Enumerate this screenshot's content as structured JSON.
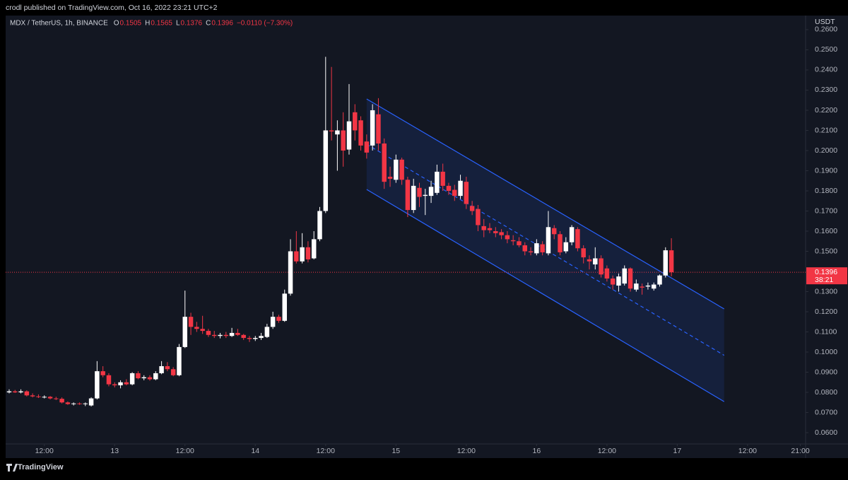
{
  "header": {
    "byline": "crodl published on TradingView.com, Oct 16, 2022 23:21 UTC+2",
    "brand": "TradingView"
  },
  "chart_data": {
    "type": "candlestick",
    "symbol": "MDX / TetherUS, 1h, BINANCE",
    "legend": [
      {
        "key": "O",
        "value": "0.1505"
      },
      {
        "key": "H",
        "value": "0.1565"
      },
      {
        "key": "L",
        "value": "0.1376"
      },
      {
        "key": "C",
        "value": "0.1396"
      }
    ],
    "change": "−0.0110 (−7.30%)",
    "currency": "USDT",
    "up_color": "#ffffff",
    "down_color": "#f23645",
    "last_price": {
      "value": 0.1396,
      "label": "0.1396"
    },
    "countdown": "38:21",
    "xlim": [
      5.4,
      141.9
    ],
    "xticks": [
      {
        "value": 12,
        "label": "12:00"
      },
      {
        "value": 24,
        "label": "13"
      },
      {
        "value": 36,
        "label": "12:00"
      },
      {
        "value": 48,
        "label": "14"
      },
      {
        "value": 60,
        "label": "12:00"
      },
      {
        "value": 72,
        "label": "15"
      },
      {
        "value": 84,
        "label": "12:00"
      },
      {
        "value": 96,
        "label": "16"
      },
      {
        "value": 108,
        "label": "12:00"
      },
      {
        "value": 120,
        "label": "17"
      },
      {
        "value": 132,
        "label": "12:00"
      },
      {
        "value": 141,
        "label": "21:00"
      }
    ],
    "ylim": [
      0.0544,
      0.267
    ],
    "yticks": [
      {
        "value": 0.26,
        "label": "0.2600"
      },
      {
        "value": 0.25,
        "label": "0.2500"
      },
      {
        "value": 0.24,
        "label": "0.2400"
      },
      {
        "value": 0.23,
        "label": "0.2300"
      },
      {
        "value": 0.22,
        "label": "0.2200"
      },
      {
        "value": 0.21,
        "label": "0.2100"
      },
      {
        "value": 0.2,
        "label": "0.2000"
      },
      {
        "value": 0.19,
        "label": "0.1900"
      },
      {
        "value": 0.18,
        "label": "0.1800"
      },
      {
        "value": 0.17,
        "label": "0.1700"
      },
      {
        "value": 0.16,
        "label": "0.1600"
      },
      {
        "value": 0.15,
        "label": "0.1500"
      },
      {
        "value": 0.13,
        "label": "0.1300"
      },
      {
        "value": 0.12,
        "label": "0.1200"
      },
      {
        "value": 0.11,
        "label": "0.1100"
      },
      {
        "value": 0.1,
        "label": "0.1000"
      },
      {
        "value": 0.09,
        "label": "0.0900"
      },
      {
        "value": 0.08,
        "label": "0.0800"
      },
      {
        "value": 0.07,
        "label": "0.0700"
      },
      {
        "value": 0.06,
        "label": "0.0600"
      }
    ],
    "channel": {
      "color": "#2962ff",
      "x": [
        67,
        128
      ],
      "upper": [
        0.2256,
        0.1214
      ],
      "lower": [
        0.1807,
        0.0754
      ]
    },
    "candles": [
      {
        "x": 6,
        "open": 0.08,
        "high": 0.0815,
        "low": 0.0795,
        "close": 0.0805
      },
      {
        "x": 7,
        "open": 0.0805,
        "high": 0.0812,
        "low": 0.0797,
        "close": 0.08
      },
      {
        "x": 8,
        "open": 0.08,
        "high": 0.0815,
        "low": 0.0795,
        "close": 0.0805
      },
      {
        "x": 9,
        "open": 0.0805,
        "high": 0.081,
        "low": 0.078,
        "close": 0.0785
      },
      {
        "x": 10,
        "open": 0.0785,
        "high": 0.0795,
        "low": 0.0775,
        "close": 0.078
      },
      {
        "x": 11,
        "open": 0.078,
        "high": 0.079,
        "low": 0.0772,
        "close": 0.0778
      },
      {
        "x": 12,
        "open": 0.0778,
        "high": 0.0785,
        "low": 0.077,
        "close": 0.0778
      },
      {
        "x": 13,
        "open": 0.0778,
        "high": 0.0782,
        "low": 0.0765,
        "close": 0.077
      },
      {
        "x": 14,
        "open": 0.077,
        "high": 0.0778,
        "low": 0.0762,
        "close": 0.0768
      },
      {
        "x": 15,
        "open": 0.0768,
        "high": 0.0775,
        "low": 0.0745,
        "close": 0.075
      },
      {
        "x": 16,
        "open": 0.075,
        "high": 0.0755,
        "low": 0.0738,
        "close": 0.0742
      },
      {
        "x": 17,
        "open": 0.0742,
        "high": 0.075,
        "low": 0.0735,
        "close": 0.0745
      },
      {
        "x": 18,
        "open": 0.0745,
        "high": 0.075,
        "low": 0.0738,
        "close": 0.0742
      },
      {
        "x": 19,
        "open": 0.0742,
        "high": 0.075,
        "low": 0.0732,
        "close": 0.0745
      },
      {
        "x": 20,
        "open": 0.0735,
        "high": 0.0775,
        "low": 0.073,
        "close": 0.077
      },
      {
        "x": 21,
        "open": 0.077,
        "high": 0.0955,
        "low": 0.0765,
        "close": 0.0905
      },
      {
        "x": 22,
        "open": 0.0905,
        "high": 0.093,
        "low": 0.0875,
        "close": 0.0885
      },
      {
        "x": 23,
        "open": 0.0885,
        "high": 0.0895,
        "low": 0.083,
        "close": 0.084
      },
      {
        "x": 24,
        "open": 0.084,
        "high": 0.085,
        "low": 0.0825,
        "close": 0.0835
      },
      {
        "x": 25,
        "open": 0.0835,
        "high": 0.086,
        "low": 0.082,
        "close": 0.085
      },
      {
        "x": 26,
        "open": 0.085,
        "high": 0.0865,
        "low": 0.0835,
        "close": 0.084
      },
      {
        "x": 27,
        "open": 0.084,
        "high": 0.09,
        "low": 0.0835,
        "close": 0.0895
      },
      {
        "x": 28,
        "open": 0.0895,
        "high": 0.0905,
        "low": 0.0865,
        "close": 0.087
      },
      {
        "x": 29,
        "open": 0.087,
        "high": 0.0885,
        "low": 0.086,
        "close": 0.0875
      },
      {
        "x": 30,
        "open": 0.0875,
        "high": 0.0885,
        "low": 0.0858,
        "close": 0.0865
      },
      {
        "x": 31,
        "open": 0.0865,
        "high": 0.0905,
        "low": 0.086,
        "close": 0.0895
      },
      {
        "x": 32,
        "open": 0.0895,
        "high": 0.0955,
        "low": 0.089,
        "close": 0.093
      },
      {
        "x": 33,
        "open": 0.093,
        "high": 0.095,
        "low": 0.0905,
        "close": 0.0915
      },
      {
        "x": 34,
        "open": 0.0915,
        "high": 0.0925,
        "low": 0.088,
        "close": 0.0885
      },
      {
        "x": 35,
        "open": 0.0885,
        "high": 0.104,
        "low": 0.088,
        "close": 0.1025
      },
      {
        "x": 36,
        "open": 0.1025,
        "high": 0.1305,
        "low": 0.102,
        "close": 0.1175
      },
      {
        "x": 37,
        "open": 0.1175,
        "high": 0.1195,
        "low": 0.1085,
        "close": 0.1125
      },
      {
        "x": 38,
        "open": 0.1125,
        "high": 0.115,
        "low": 0.11,
        "close": 0.1115
      },
      {
        "x": 39,
        "open": 0.1115,
        "high": 0.118,
        "low": 0.109,
        "close": 0.1105
      },
      {
        "x": 40,
        "open": 0.1105,
        "high": 0.1115,
        "low": 0.1075,
        "close": 0.1085
      },
      {
        "x": 41,
        "open": 0.1085,
        "high": 0.1105,
        "low": 0.107,
        "close": 0.108
      },
      {
        "x": 42,
        "open": 0.108,
        "high": 0.1095,
        "low": 0.1068,
        "close": 0.1085
      },
      {
        "x": 43,
        "open": 0.1085,
        "high": 0.11,
        "low": 0.107,
        "close": 0.108
      },
      {
        "x": 44,
        "open": 0.108,
        "high": 0.112,
        "low": 0.1075,
        "close": 0.1095
      },
      {
        "x": 45,
        "open": 0.1095,
        "high": 0.1115,
        "low": 0.108,
        "close": 0.1085
      },
      {
        "x": 46,
        "open": 0.1085,
        "high": 0.109,
        "low": 0.106,
        "close": 0.107
      },
      {
        "x": 47,
        "open": 0.107,
        "high": 0.108,
        "low": 0.105,
        "close": 0.1065
      },
      {
        "x": 48,
        "open": 0.1065,
        "high": 0.108,
        "low": 0.1055,
        "close": 0.107
      },
      {
        "x": 49,
        "open": 0.107,
        "high": 0.1095,
        "low": 0.106,
        "close": 0.108
      },
      {
        "x": 50,
        "open": 0.1075,
        "high": 0.114,
        "low": 0.107,
        "close": 0.1125
      },
      {
        "x": 51,
        "open": 0.1125,
        "high": 0.12,
        "low": 0.1115,
        "close": 0.1175
      },
      {
        "x": 52,
        "open": 0.1175,
        "high": 0.1185,
        "low": 0.1145,
        "close": 0.1155
      },
      {
        "x": 53,
        "open": 0.1155,
        "high": 0.131,
        "low": 0.115,
        "close": 0.129
      },
      {
        "x": 54,
        "open": 0.129,
        "high": 0.156,
        "low": 0.128,
        "close": 0.15
      },
      {
        "x": 55,
        "open": 0.15,
        "high": 0.16,
        "low": 0.144,
        "close": 0.145
      },
      {
        "x": 56,
        "open": 0.145,
        "high": 0.159,
        "low": 0.144,
        "close": 0.152
      },
      {
        "x": 57,
        "open": 0.152,
        "high": 0.155,
        "low": 0.1445,
        "close": 0.146
      },
      {
        "x": 58,
        "open": 0.1465,
        "high": 0.16,
        "low": 0.146,
        "close": 0.156
      },
      {
        "x": 59,
        "open": 0.156,
        "high": 0.172,
        "low": 0.155,
        "close": 0.17
      },
      {
        "x": 60,
        "open": 0.17,
        "high": 0.2465,
        "low": 0.169,
        "close": 0.21
      },
      {
        "x": 61,
        "open": 0.21,
        "high": 0.2415,
        "low": 0.205,
        "close": 0.2095
      },
      {
        "x": 62,
        "open": 0.208,
        "high": 0.215,
        "low": 0.19,
        "close": 0.21
      },
      {
        "x": 63,
        "open": 0.21,
        "high": 0.219,
        "low": 0.192,
        "close": 0.2
      },
      {
        "x": 64,
        "open": 0.2005,
        "high": 0.233,
        "low": 0.198,
        "close": 0.2145
      },
      {
        "x": 65,
        "open": 0.219,
        "high": 0.223,
        "low": 0.205,
        "close": 0.21
      },
      {
        "x": 66,
        "open": 0.215,
        "high": 0.217,
        "low": 0.2,
        "close": 0.2025
      },
      {
        "x": 67,
        "open": 0.2045,
        "high": 0.208,
        "low": 0.196,
        "close": 0.199
      },
      {
        "x": 68,
        "open": 0.2025,
        "high": 0.223,
        "low": 0.2,
        "close": 0.22
      },
      {
        "x": 69,
        "open": 0.218,
        "high": 0.226,
        "low": 0.2,
        "close": 0.2035
      },
      {
        "x": 70,
        "open": 0.2035,
        "high": 0.206,
        "low": 0.181,
        "close": 0.1845
      },
      {
        "x": 71,
        "open": 0.187,
        "high": 0.192,
        "low": 0.182,
        "close": 0.186
      },
      {
        "x": 72,
        "open": 0.1855,
        "high": 0.198,
        "low": 0.184,
        "close": 0.1955
      },
      {
        "x": 73,
        "open": 0.1955,
        "high": 0.1965,
        "low": 0.183,
        "close": 0.1855
      },
      {
        "x": 74,
        "open": 0.1855,
        "high": 0.187,
        "low": 0.167,
        "close": 0.1705
      },
      {
        "x": 75,
        "open": 0.1705,
        "high": 0.186,
        "low": 0.169,
        "close": 0.1825
      },
      {
        "x": 76,
        "open": 0.1815,
        "high": 0.184,
        "low": 0.172,
        "close": 0.177
      },
      {
        "x": 77,
        "open": 0.1775,
        "high": 0.181,
        "low": 0.168,
        "close": 0.178
      },
      {
        "x": 78,
        "open": 0.1775,
        "high": 0.185,
        "low": 0.174,
        "close": 0.182
      },
      {
        "x": 79,
        "open": 0.179,
        "high": 0.193,
        "low": 0.178,
        "close": 0.1895
      },
      {
        "x": 80,
        "open": 0.1895,
        "high": 0.1935,
        "low": 0.18,
        "close": 0.1825
      },
      {
        "x": 81,
        "open": 0.1825,
        "high": 0.184,
        "low": 0.178,
        "close": 0.18
      },
      {
        "x": 82,
        "open": 0.1805,
        "high": 0.183,
        "low": 0.175,
        "close": 0.1775
      },
      {
        "x": 83,
        "open": 0.1775,
        "high": 0.188,
        "low": 0.176,
        "close": 0.185
      },
      {
        "x": 84,
        "open": 0.1845,
        "high": 0.187,
        "low": 0.171,
        "close": 0.1735
      },
      {
        "x": 85,
        "open": 0.1725,
        "high": 0.175,
        "low": 0.168,
        "close": 0.17
      },
      {
        "x": 86,
        "open": 0.171,
        "high": 0.173,
        "low": 0.16,
        "close": 0.163
      },
      {
        "x": 87,
        "open": 0.1625,
        "high": 0.166,
        "low": 0.157,
        "close": 0.1605
      },
      {
        "x": 88,
        "open": 0.1615,
        "high": 0.164,
        "low": 0.159,
        "close": 0.1605
      },
      {
        "x": 89,
        "open": 0.16,
        "high": 0.162,
        "low": 0.157,
        "close": 0.159
      },
      {
        "x": 90,
        "open": 0.1595,
        "high": 0.161,
        "low": 0.156,
        "close": 0.158
      },
      {
        "x": 91,
        "open": 0.158,
        "high": 0.16,
        "low": 0.154,
        "close": 0.156
      },
      {
        "x": 92,
        "open": 0.1555,
        "high": 0.158,
        "low": 0.153,
        "close": 0.155
      },
      {
        "x": 93,
        "open": 0.155,
        "high": 0.157,
        "low": 0.152,
        "close": 0.153
      },
      {
        "x": 94,
        "open": 0.153,
        "high": 0.1545,
        "low": 0.148,
        "close": 0.15
      },
      {
        "x": 95,
        "open": 0.15,
        "high": 0.152,
        "low": 0.148,
        "close": 0.1495
      },
      {
        "x": 96,
        "open": 0.149,
        "high": 0.156,
        "low": 0.148,
        "close": 0.154
      },
      {
        "x": 97,
        "open": 0.1535,
        "high": 0.155,
        "low": 0.148,
        "close": 0.1495
      },
      {
        "x": 98,
        "open": 0.149,
        "high": 0.17,
        "low": 0.148,
        "close": 0.162
      },
      {
        "x": 99,
        "open": 0.1615,
        "high": 0.163,
        "low": 0.156,
        "close": 0.1585
      },
      {
        "x": 100,
        "open": 0.1585,
        "high": 0.16,
        "low": 0.148,
        "close": 0.1495
      },
      {
        "x": 101,
        "open": 0.15,
        "high": 0.157,
        "low": 0.149,
        "close": 0.1545
      },
      {
        "x": 102,
        "open": 0.1545,
        "high": 0.163,
        "low": 0.153,
        "close": 0.162
      },
      {
        "x": 103,
        "open": 0.161,
        "high": 0.162,
        "low": 0.15,
        "close": 0.1515
      },
      {
        "x": 104,
        "open": 0.1515,
        "high": 0.153,
        "low": 0.144,
        "close": 0.147
      },
      {
        "x": 105,
        "open": 0.146,
        "high": 0.148,
        "low": 0.141,
        "close": 0.145
      },
      {
        "x": 106,
        "open": 0.1435,
        "high": 0.152,
        "low": 0.141,
        "close": 0.1465
      },
      {
        "x": 107,
        "open": 0.1465,
        "high": 0.148,
        "low": 0.137,
        "close": 0.1385
      },
      {
        "x": 108,
        "open": 0.1415,
        "high": 0.143,
        "low": 0.135,
        "close": 0.1365
      },
      {
        "x": 109,
        "open": 0.1365,
        "high": 0.138,
        "low": 0.131,
        "close": 0.1335
      },
      {
        "x": 110,
        "open": 0.133,
        "high": 0.139,
        "low": 0.13,
        "close": 0.1375
      },
      {
        "x": 111,
        "open": 0.134,
        "high": 0.143,
        "low": 0.133,
        "close": 0.1415
      },
      {
        "x": 112,
        "open": 0.1415,
        "high": 0.142,
        "low": 0.13,
        "close": 0.1315
      },
      {
        "x": 113,
        "open": 0.131,
        "high": 0.136,
        "low": 0.13,
        "close": 0.134
      },
      {
        "x": 114,
        "open": 0.1325,
        "high": 0.134,
        "low": 0.1285,
        "close": 0.132
      },
      {
        "x": 115,
        "open": 0.1325,
        "high": 0.1345,
        "low": 0.131,
        "close": 0.133
      },
      {
        "x": 116,
        "open": 0.1315,
        "high": 0.1345,
        "low": 0.1305,
        "close": 0.1335
      },
      {
        "x": 117,
        "open": 0.1335,
        "high": 0.1385,
        "low": 0.1325,
        "close": 0.138
      },
      {
        "x": 118,
        "open": 0.138,
        "high": 0.152,
        "low": 0.137,
        "close": 0.1505
      },
      {
        "x": 119,
        "open": 0.1505,
        "high": 0.1565,
        "low": 0.1376,
        "close": 0.1396
      }
    ]
  }
}
